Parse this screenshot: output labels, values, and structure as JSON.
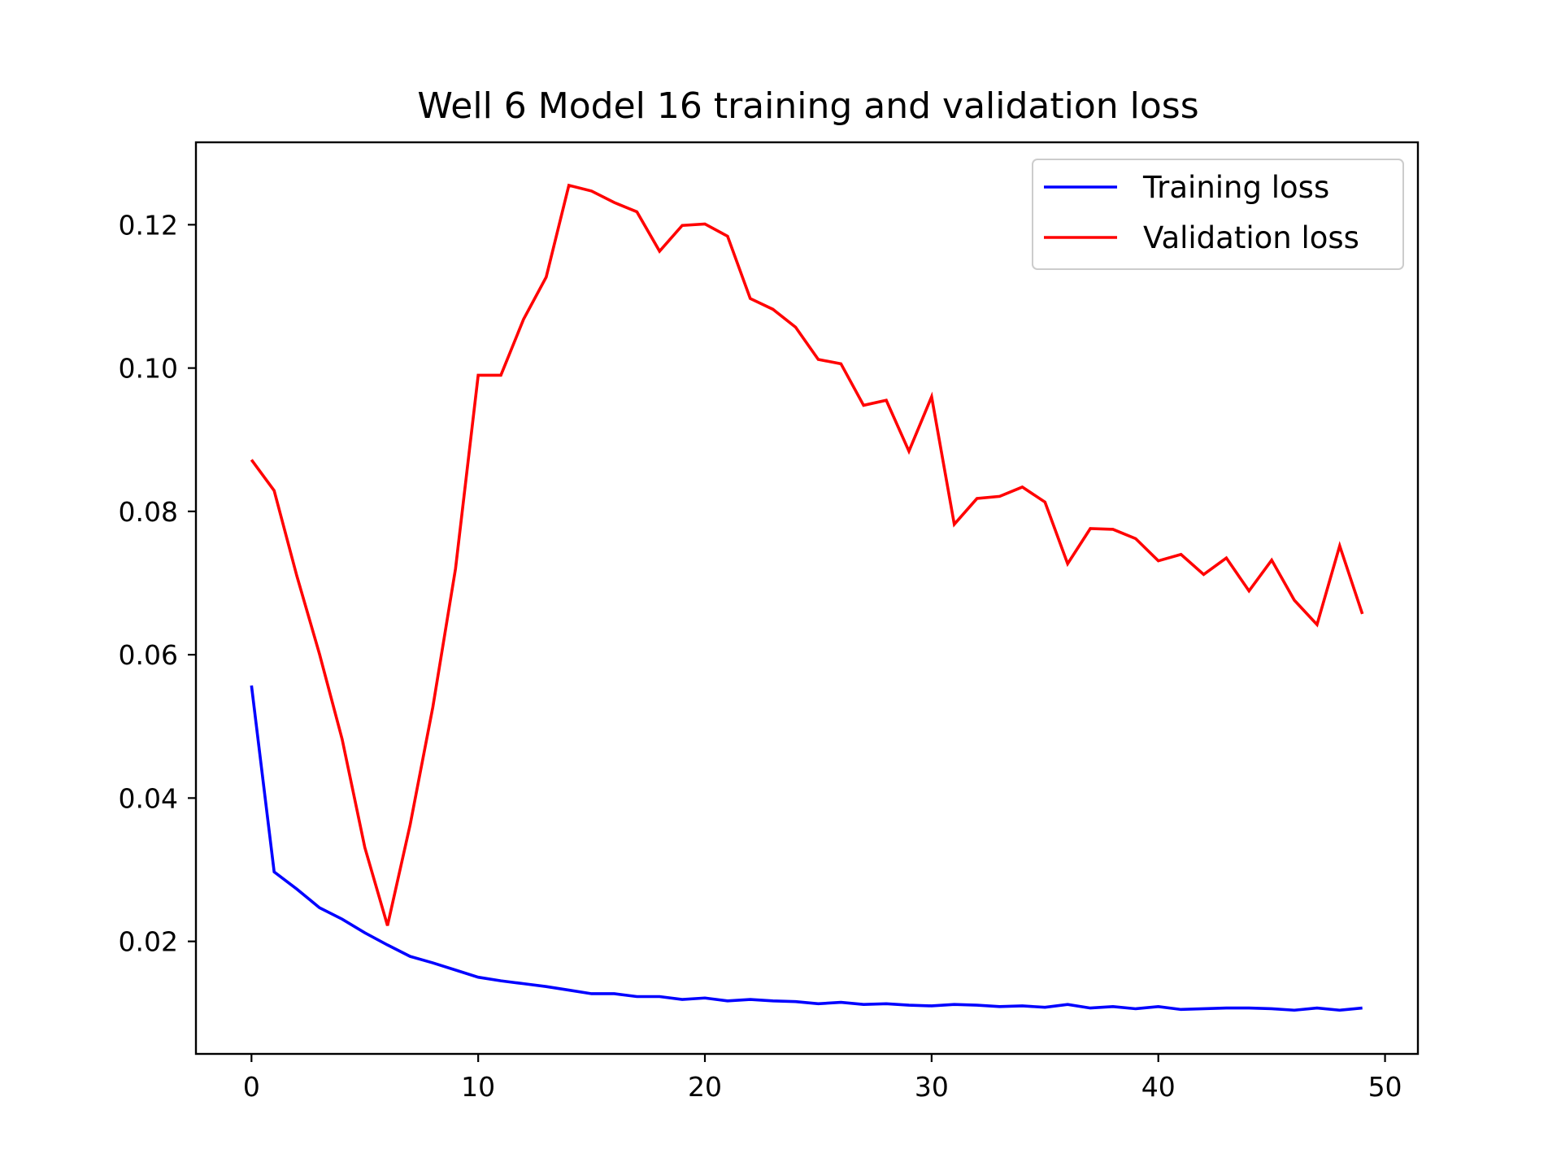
{
  "chart_data": {
    "type": "line",
    "title": "Well 6 Model 16 training and validation loss",
    "xlabel": "",
    "ylabel": "",
    "xlim": [
      -2.45,
      51.45
    ],
    "ylim": [
      0.0043,
      0.1315
    ],
    "xticks": [
      0,
      10,
      20,
      30,
      40,
      50
    ],
    "yticks": [
      0.02,
      0.04,
      0.06,
      0.08,
      0.1,
      0.12
    ],
    "ytick_labels": [
      "0.02",
      "0.04",
      "0.06",
      "0.08",
      "0.10",
      "0.12"
    ],
    "xtick_labels": [
      "0",
      "10",
      "20",
      "30",
      "40",
      "50"
    ],
    "grid": false,
    "legend_position": "top-right",
    "x": [
      0,
      1,
      2,
      3,
      4,
      5,
      6,
      7,
      8,
      9,
      10,
      11,
      12,
      13,
      14,
      15,
      16,
      17,
      18,
      19,
      20,
      21,
      22,
      23,
      24,
      25,
      26,
      27,
      28,
      29,
      30,
      31,
      32,
      33,
      34,
      35,
      36,
      37,
      38,
      39,
      40,
      41,
      42,
      43,
      44,
      45,
      46,
      47,
      48,
      49
    ],
    "series": [
      {
        "name": "Training loss",
        "color": "#0000ff",
        "values": [
          0.0557,
          0.0297,
          0.0273,
          0.0247,
          0.0231,
          0.0212,
          0.0195,
          0.0179,
          0.017,
          0.016,
          0.015,
          0.0145,
          0.0141,
          0.0137,
          0.0132,
          0.0127,
          0.0127,
          0.0123,
          0.0123,
          0.0119,
          0.0121,
          0.0117,
          0.0119,
          0.0117,
          0.0116,
          0.0113,
          0.0115,
          0.0112,
          0.0113,
          0.0111,
          0.011,
          0.0112,
          0.0111,
          0.0109,
          0.011,
          0.0108,
          0.0112,
          0.0107,
          0.0109,
          0.0106,
          0.0109,
          0.0105,
          0.0106,
          0.0107,
          0.0107,
          0.0106,
          0.0104,
          0.0107,
          0.0104,
          0.0107
        ]
      },
      {
        "name": "Validation loss",
        "color": "#ff0000",
        "values": [
          0.0872,
          0.0829,
          0.071,
          0.0601,
          0.0482,
          0.0331,
          0.0222,
          0.0363,
          0.0527,
          0.072,
          0.099,
          0.099,
          0.1068,
          0.1127,
          0.1255,
          0.1247,
          0.1231,
          0.1218,
          0.1163,
          0.1199,
          0.1201,
          0.1184,
          0.1097,
          0.1082,
          0.1057,
          0.1012,
          0.1006,
          0.0948,
          0.0955,
          0.0884,
          0.096,
          0.0782,
          0.0818,
          0.0821,
          0.0834,
          0.0813,
          0.0727,
          0.0776,
          0.0775,
          0.0762,
          0.0731,
          0.074,
          0.0712,
          0.0735,
          0.0689,
          0.0732,
          0.0676,
          0.0642,
          0.0752,
          0.0657
        ]
      }
    ]
  }
}
